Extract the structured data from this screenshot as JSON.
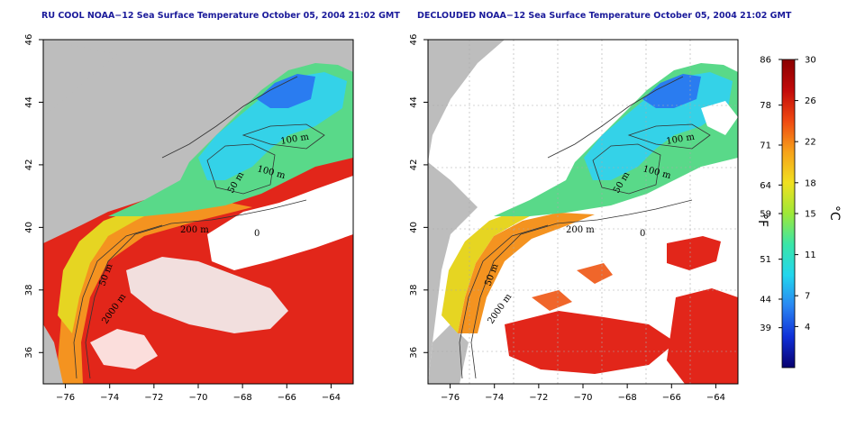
{
  "panels": [
    {
      "id": "left",
      "title": "RU COOL NOAA−12 Sea Surface Temperature October 05, 2004 21:02 GMT",
      "variant": "raw"
    },
    {
      "id": "right",
      "title": "DECLOUDED NOAA−12 Sea Surface Temperature October 05, 2004 21:02 GMT",
      "variant": "declouded"
    }
  ],
  "axes": {
    "lon_ticks": [
      "−76",
      "−74",
      "−72",
      "−70",
      "−68",
      "−66",
      "−64"
    ],
    "lon_values": [
      -76,
      -74,
      -72,
      -70,
      -68,
      -66,
      -64
    ],
    "lat_ticks": [
      "36",
      "38",
      "40",
      "42",
      "44",
      "46"
    ],
    "lat_values": [
      36,
      38,
      40,
      42,
      44,
      46
    ],
    "lon_range": [
      -77,
      -63
    ],
    "lat_range": [
      35,
      46
    ]
  },
  "contour_labels": {
    "m100a": "100 m",
    "m100b": "100 m",
    "m50a": "50 m",
    "m200": "200 m",
    "m50b": "50 m",
    "m2000": "2000 m",
    "small0": "0"
  },
  "colorbar": {
    "fahrenheit_unit": "°F",
    "celsius_unit": "°C",
    "fahrenheit_ticks": [
      "86",
      "78",
      "71",
      "64",
      "59",
      "51",
      "44",
      "39"
    ],
    "celsius_ticks": [
      "30",
      "26",
      "22",
      "18",
      "15",
      "11",
      "7",
      "4"
    ],
    "celsius_range": [
      0,
      30
    ],
    "colors": [
      "#08006f",
      "#1030d8",
      "#2a86f2",
      "#22d6ee",
      "#3ae6a8",
      "#9ee838",
      "#f0e020",
      "#f7a21a",
      "#ef4a12",
      "#c20a0a",
      "#8a0000"
    ]
  },
  "colors": {
    "land": "#bdbdbd",
    "cloud": "#ffffff",
    "title": "#1a1a9a"
  }
}
